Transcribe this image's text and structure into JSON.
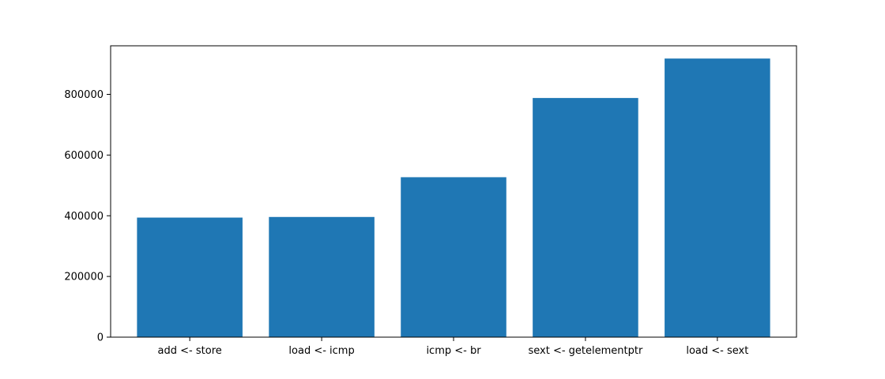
{
  "chart_data": {
    "type": "bar",
    "title": "",
    "xlabel": "",
    "ylabel": "",
    "categories": [
      "add <- store",
      "load <- icmp",
      "icmp <- br",
      "sext <- getelementptr",
      "load <- sext"
    ],
    "values": [
      394000,
      396000,
      527000,
      788000,
      918000
    ],
    "ylim": [
      0,
      960000
    ],
    "yticks": [
      0,
      200000,
      400000,
      600000,
      800000
    ],
    "ytick_labels": [
      "0",
      "200000",
      "400000",
      "600000",
      "800000"
    ],
    "bar_color": "#1f77b4",
    "grid": false,
    "legend": "none"
  }
}
